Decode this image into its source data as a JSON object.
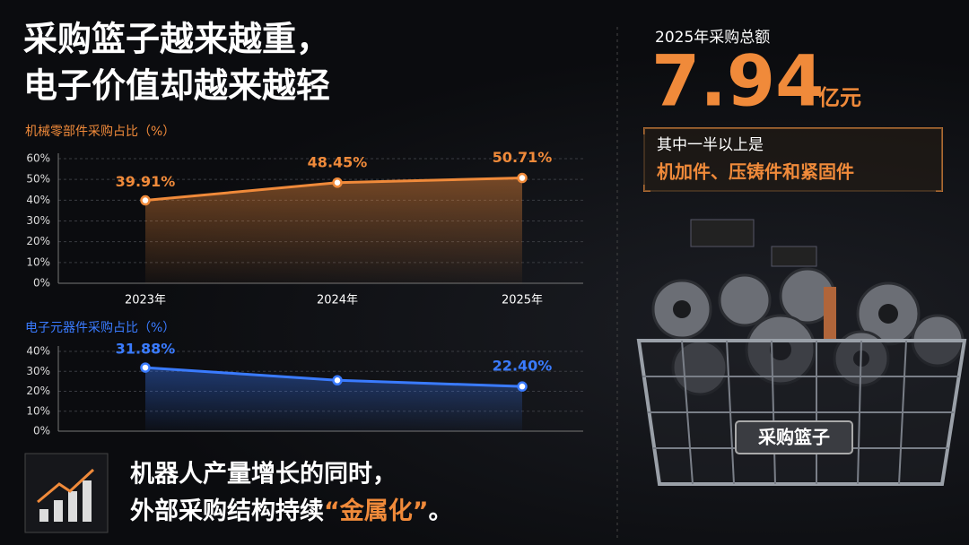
{
  "headline": [
    "采购篮子越来越重，",
    "电子价值却越来越轻"
  ],
  "total": {
    "label": "2025年采购总额",
    "value": "7.94",
    "unit": "亿元"
  },
  "note": {
    "line1": "其中一半以上是",
    "line2": "机加件、压铸件和紧固件"
  },
  "basket_label": "采购篮子",
  "footer": {
    "line1": "机器人产量增长的同时，",
    "line2": "外部采购结构持续",
    "highlight": "“金属化”",
    "end": "。"
  },
  "chart_data": [
    {
      "type": "line",
      "title": "机械零部件采购占比（%）",
      "categories": [
        "2023年",
        "2024年",
        "2025年"
      ],
      "values": [
        39.91,
        48.45,
        50.71
      ],
      "value_labels": [
        "39.91%",
        "48.45%",
        "50.71%"
      ],
      "color": "#f08a3a",
      "ylim": [
        0,
        60
      ],
      "yticks": [
        {
          "value": 0,
          "label": "0%"
        },
        {
          "value": 10,
          "label": "10%"
        },
        {
          "value": 20,
          "label": "20%"
        },
        {
          "value": 30,
          "label": "30%"
        },
        {
          "value": 40,
          "label": "40%"
        },
        {
          "value": 50,
          "label": "50%"
        },
        {
          "value": 60,
          "label": "60%"
        }
      ],
      "grid": true
    },
    {
      "type": "line",
      "title": "电子元器件采购占比（%）",
      "categories": [
        null,
        null,
        null
      ],
      "values": [
        31.88,
        25.5,
        22.4
      ],
      "value_labels": [
        "31.88%",
        null,
        "22.40%"
      ],
      "color": "#3a7bff",
      "ylim": [
        0,
        40
      ],
      "yticks": [
        {
          "value": 0,
          "label": "0%"
        },
        {
          "value": 10,
          "label": "10%"
        },
        {
          "value": 20,
          "label": "20%"
        },
        {
          "value": 30,
          "label": "30%"
        },
        {
          "value": 40,
          "label": "40%"
        }
      ],
      "grid": true
    }
  ]
}
